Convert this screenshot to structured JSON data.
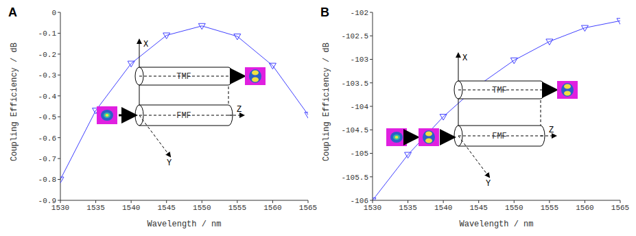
{
  "chart_data": [
    {
      "type": "line",
      "title": "A",
      "x_label": "Wavelength / nm",
      "y_label": "Coupling Efficiency / dB",
      "x": [
        1530,
        1535,
        1540,
        1545,
        1550,
        1555,
        1560,
        1565
      ],
      "series": [
        {
          "name": null,
          "color": "#4040ff",
          "marker": "triangle-down",
          "line_style": "solid",
          "values": [
            -0.8,
            -0.47,
            -0.245,
            -0.11,
            -0.065,
            -0.115,
            -0.255,
            -0.49
          ]
        }
      ],
      "xlim": [
        1530,
        1565
      ],
      "xticks": [
        1530,
        1535,
        1540,
        1545,
        1550,
        1555,
        1560,
        1565
      ],
      "ylim": [
        -0.9,
        0
      ],
      "yticks": [
        -0.9,
        -0.8,
        -0.7,
        -0.6,
        -0.5,
        -0.4,
        -0.3,
        -0.2,
        -0.1,
        0
      ],
      "grid": false,
      "annotations": {
        "top_fiber": "TMF",
        "bottom_fiber": "FMF",
        "axis_labels": [
          "X",
          "Y",
          "Z"
        ]
      }
    },
    {
      "type": "line",
      "title": "B",
      "x_label": "Wavelength / nm",
      "y_label": "Coupling Efficiency / dB",
      "x": [
        1530,
        1535,
        1540,
        1545,
        1550,
        1555,
        1560,
        1565
      ],
      "series": [
        {
          "name": null,
          "color": "#4040ff",
          "marker": "triangle-down",
          "line_style": "solid",
          "values": [
            -106,
            -105.03,
            -104.22,
            -103.55,
            -103.02,
            -102.62,
            -102.33,
            -102.18
          ]
        }
      ],
      "xlim": [
        1530,
        1565
      ],
      "xticks": [
        1530,
        1535,
        1540,
        1545,
        1550,
        1555,
        1560,
        1565
      ],
      "ylim": [
        -106,
        -102
      ],
      "yticks": [
        -106,
        -105.5,
        -105,
        -104.5,
        -104,
        -103.5,
        -103,
        -102.5,
        -102
      ],
      "grid": false,
      "annotations": {
        "top_fiber": "TMF",
        "bottom_fiber": "FMF",
        "axis_labels": [
          "X",
          "Y",
          "Z"
        ]
      }
    }
  ]
}
